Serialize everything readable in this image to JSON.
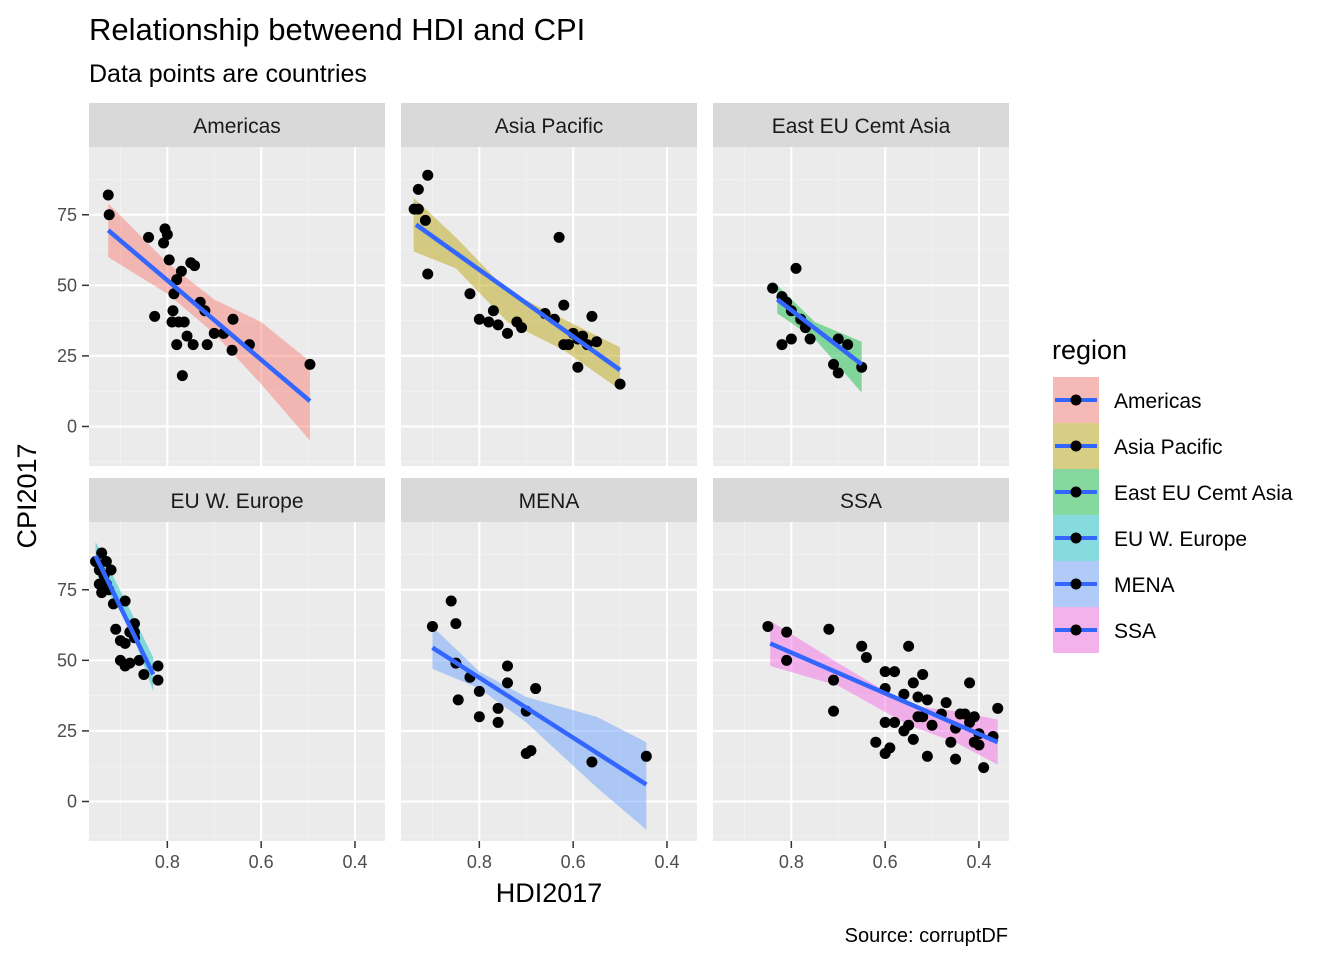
{
  "chart_data": {
    "type": "scatter",
    "title": "Relationship betweend HDI and CPI",
    "subtitle": "Data points are countries",
    "caption": "Source: corruptDF",
    "xlabel": "HDI2017",
    "ylabel": "CPI2017",
    "x_reversed": true,
    "xlim": [
      0.967,
      0.336
    ],
    "ylim": [
      -14,
      99
    ],
    "x_ticks": [
      0.8,
      0.6,
      0.4
    ],
    "x_tick_labels": [
      "0.8",
      "0.6",
      "0.4"
    ],
    "y_ticks": [
      0,
      25,
      50,
      75
    ],
    "y_tick_labels": [
      "0",
      "25",
      "50",
      "75"
    ],
    "grid": true,
    "legend_title": "region",
    "legend_placement": "right",
    "trend_line_color": "#3366FF",
    "point_color": "#000000",
    "panels": [
      {
        "name": "Americas",
        "color": "#F8766D",
        "fit": {
          "x1": 0.926,
          "y1": 69.5,
          "x2": 0.496,
          "y2": 9
        },
        "band": [
          [
            0.926,
            60,
            79
          ],
          [
            0.8,
            47,
            58
          ],
          [
            0.7,
            33,
            45
          ],
          [
            0.6,
            15,
            37
          ],
          [
            0.496,
            -5,
            23
          ]
        ],
        "points": [
          [
            0.926,
            82
          ],
          [
            0.924,
            75
          ],
          [
            0.84,
            67
          ],
          [
            0.805,
            70
          ],
          [
            0.8,
            68
          ],
          [
            0.808,
            65
          ],
          [
            0.796,
            59
          ],
          [
            0.77,
            55
          ],
          [
            0.75,
            58
          ],
          [
            0.742,
            57
          ],
          [
            0.78,
            52
          ],
          [
            0.786,
            47
          ],
          [
            0.788,
            41
          ],
          [
            0.79,
            37
          ],
          [
            0.776,
            37
          ],
          [
            0.764,
            37
          ],
          [
            0.758,
            32
          ],
          [
            0.73,
            44
          ],
          [
            0.72,
            41
          ],
          [
            0.7,
            33
          ],
          [
            0.68,
            33
          ],
          [
            0.66,
            38
          ],
          [
            0.662,
            27
          ],
          [
            0.625,
            29
          ],
          [
            0.745,
            29
          ],
          [
            0.715,
            29
          ],
          [
            0.78,
            29
          ],
          [
            0.827,
            39
          ],
          [
            0.768,
            18
          ],
          [
            0.496,
            22
          ]
        ]
      },
      {
        "name": "Asia Pacific",
        "color": "#B79F00",
        "fit": {
          "x1": 0.935,
          "y1": 71.5,
          "x2": 0.5,
          "y2": 20
        },
        "band": [
          [
            0.94,
            62,
            81
          ],
          [
            0.85,
            56,
            67
          ],
          [
            0.74,
            37,
            48
          ],
          [
            0.62,
            27,
            38
          ],
          [
            0.5,
            13,
            28
          ]
        ],
        "points": [
          [
            0.91,
            89
          ],
          [
            0.93,
            84
          ],
          [
            0.939,
            77
          ],
          [
            0.93,
            77
          ],
          [
            0.915,
            73
          ],
          [
            0.91,
            54
          ],
          [
            0.82,
            47
          ],
          [
            0.8,
            38
          ],
          [
            0.78,
            37
          ],
          [
            0.76,
            36
          ],
          [
            0.77,
            41
          ],
          [
            0.74,
            33
          ],
          [
            0.72,
            37
          ],
          [
            0.71,
            35
          ],
          [
            0.66,
            40
          ],
          [
            0.64,
            38
          ],
          [
            0.62,
            29
          ],
          [
            0.61,
            29
          ],
          [
            0.6,
            33
          ],
          [
            0.59,
            31
          ],
          [
            0.58,
            32
          ],
          [
            0.57,
            29
          ],
          [
            0.56,
            39
          ],
          [
            0.62,
            43
          ],
          [
            0.63,
            67
          ],
          [
            0.55,
            30
          ],
          [
            0.59,
            21
          ],
          [
            0.5,
            15
          ]
        ]
      },
      {
        "name": "East EU Cemt Asia",
        "color": "#00BA38",
        "fit": {
          "x1": 0.83,
          "y1": 45,
          "x2": 0.65,
          "y2": 22
        },
        "band": [
          [
            0.83,
            40,
            50
          ],
          [
            0.75,
            31,
            37
          ],
          [
            0.65,
            12,
            30
          ]
        ],
        "points": [
          [
            0.84,
            49
          ],
          [
            0.82,
            46
          ],
          [
            0.81,
            44
          ],
          [
            0.79,
            56
          ],
          [
            0.8,
            41
          ],
          [
            0.78,
            38
          ],
          [
            0.77,
            35
          ],
          [
            0.76,
            31
          ],
          [
            0.8,
            31
          ],
          [
            0.82,
            29
          ],
          [
            0.7,
            31
          ],
          [
            0.68,
            29
          ],
          [
            0.71,
            22
          ],
          [
            0.7,
            19
          ],
          [
            0.65,
            21
          ]
        ]
      },
      {
        "name": "EU W. Europe",
        "color": "#00BFC4",
        "fit": {
          "x1": 0.953,
          "y1": 87,
          "x2": 0.83,
          "y2": 45
        },
        "band": [
          [
            0.953,
            81,
            92
          ],
          [
            0.88,
            62,
            68
          ],
          [
            0.83,
            39,
            51
          ]
        ],
        "points": [
          [
            0.953,
            85
          ],
          [
            0.94,
            88
          ],
          [
            0.93,
            85
          ],
          [
            0.945,
            82
          ],
          [
            0.92,
            82
          ],
          [
            0.935,
            80
          ],
          [
            0.93,
            77
          ],
          [
            0.945,
            77
          ],
          [
            0.925,
            75
          ],
          [
            0.94,
            74
          ],
          [
            0.915,
            70
          ],
          [
            0.89,
            71
          ],
          [
            0.91,
            61
          ],
          [
            0.88,
            60
          ],
          [
            0.87,
            63
          ],
          [
            0.87,
            58
          ],
          [
            0.9,
            57
          ],
          [
            0.89,
            56
          ],
          [
            0.9,
            50
          ],
          [
            0.88,
            49
          ],
          [
            0.89,
            48
          ],
          [
            0.86,
            50
          ],
          [
            0.85,
            45
          ],
          [
            0.82,
            48
          ],
          [
            0.82,
            43
          ],
          [
            0.87,
            60
          ]
        ]
      },
      {
        "name": "MENA",
        "color": "#619CFF",
        "fit": {
          "x1": 0.9,
          "y1": 54.5,
          "x2": 0.444,
          "y2": 6
        },
        "band": [
          [
            0.9,
            47,
            62
          ],
          [
            0.8,
            40,
            46
          ],
          [
            0.7,
            28,
            37
          ],
          [
            0.55,
            5,
            30
          ],
          [
            0.444,
            -10,
            21
          ]
        ],
        "points": [
          [
            0.9,
            62
          ],
          [
            0.86,
            71
          ],
          [
            0.85,
            63
          ],
          [
            0.85,
            49
          ],
          [
            0.845,
            36
          ],
          [
            0.82,
            44
          ],
          [
            0.8,
            39
          ],
          [
            0.8,
            30
          ],
          [
            0.76,
            33
          ],
          [
            0.76,
            28
          ],
          [
            0.74,
            48
          ],
          [
            0.74,
            42
          ],
          [
            0.7,
            32
          ],
          [
            0.68,
            40
          ],
          [
            0.7,
            17
          ],
          [
            0.69,
            18
          ],
          [
            0.56,
            14
          ],
          [
            0.444,
            16
          ]
        ]
      },
      {
        "name": "SSA",
        "color": "#F564E3",
        "fit": {
          "x1": 0.845,
          "y1": 56,
          "x2": 0.36,
          "y2": 21
        },
        "band": [
          [
            0.845,
            48,
            64
          ],
          [
            0.7,
            41,
            49
          ],
          [
            0.55,
            27,
            34
          ],
          [
            0.45,
            21,
            32
          ],
          [
            0.36,
            13,
            29
          ]
        ],
        "points": [
          [
            0.85,
            62
          ],
          [
            0.81,
            60
          ],
          [
            0.81,
            50
          ],
          [
            0.72,
            61
          ],
          [
            0.71,
            43
          ],
          [
            0.71,
            32
          ],
          [
            0.65,
            55
          ],
          [
            0.64,
            51
          ],
          [
            0.6,
            46
          ],
          [
            0.6,
            40
          ],
          [
            0.58,
            28
          ],
          [
            0.6,
            28
          ],
          [
            0.62,
            21
          ],
          [
            0.6,
            17
          ],
          [
            0.59,
            19
          ],
          [
            0.56,
            25
          ],
          [
            0.55,
            27
          ],
          [
            0.54,
            22
          ],
          [
            0.55,
            55
          ],
          [
            0.54,
            42
          ],
          [
            0.52,
            45
          ],
          [
            0.53,
            37
          ],
          [
            0.51,
            36
          ],
          [
            0.52,
            30
          ],
          [
            0.5,
            27
          ],
          [
            0.51,
            16
          ],
          [
            0.48,
            31
          ],
          [
            0.47,
            35
          ],
          [
            0.45,
            26
          ],
          [
            0.46,
            21
          ],
          [
            0.45,
            15
          ],
          [
            0.42,
            42
          ],
          [
            0.43,
            31
          ],
          [
            0.41,
            30
          ],
          [
            0.42,
            28
          ],
          [
            0.4,
            24
          ],
          [
            0.41,
            21
          ],
          [
            0.4,
            20
          ],
          [
            0.39,
            12
          ],
          [
            0.37,
            23
          ],
          [
            0.36,
            33
          ],
          [
            0.44,
            31
          ],
          [
            0.56,
            38
          ],
          [
            0.58,
            46
          ],
          [
            0.53,
            30
          ]
        ]
      }
    ]
  }
}
